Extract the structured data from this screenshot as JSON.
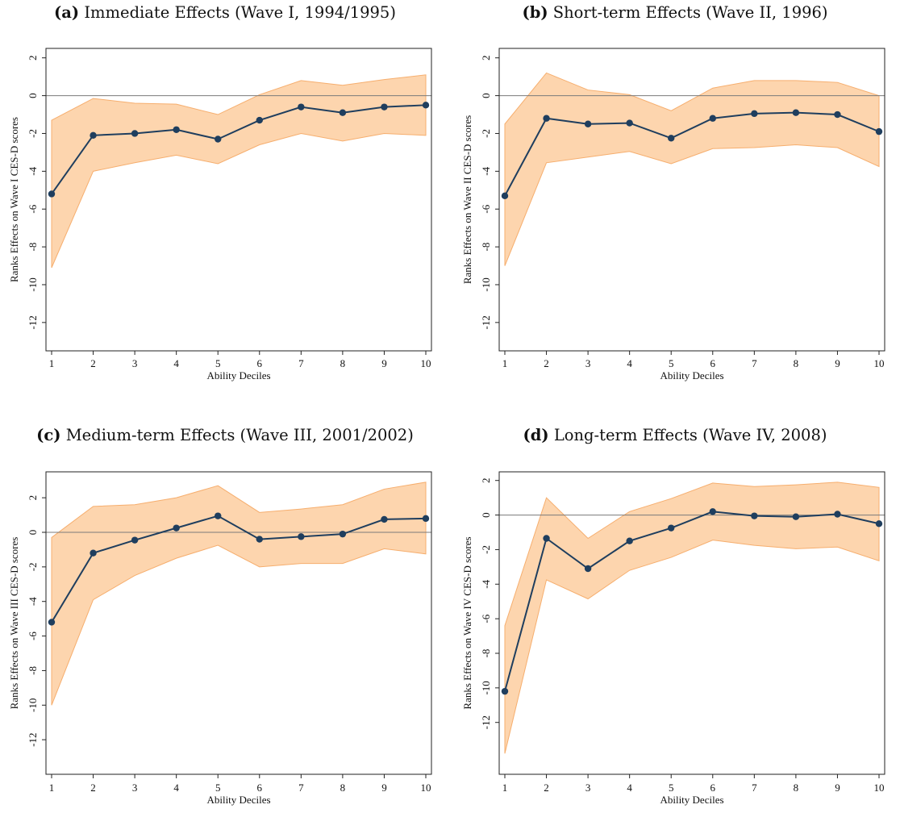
{
  "colors": {
    "band_fill": "#fdd5ae",
    "band_stroke": "#f6ae6e",
    "line": "#1f3e5e",
    "zero_line": "#7a7a7a",
    "axis": "#222222"
  },
  "chart_data": [
    {
      "type": "line",
      "letter": "(a)",
      "title": "Immediate Effects (Wave I, 1994/1995)",
      "xlabel": "Ability Deciles",
      "ylabel": "Ranks Effects on Wave I CES-D scores",
      "x": [
        1,
        2,
        3,
        4,
        5,
        6,
        7,
        8,
        9,
        10
      ],
      "ylim": [
        -13.5,
        2.5
      ],
      "yticks": [
        2,
        0,
        -2,
        -4,
        -6,
        -8,
        -10,
        -12
      ],
      "ytick_labels": [
        "2",
        "0",
        "-2",
        "-4",
        "-6",
        "-8",
        "-10",
        "-12"
      ],
      "series": [
        {
          "estimate": [
            -5.2,
            -2.1,
            -2.0,
            -1.8,
            -2.3,
            -1.3,
            -0.6,
            -0.9,
            -0.6,
            -0.5
          ],
          "ci_upper": [
            -1.3,
            -0.15,
            -0.4,
            -0.45,
            -1.0,
            0.05,
            0.8,
            0.55,
            0.85,
            1.1
          ],
          "ci_lower": [
            -9.1,
            -4.0,
            -3.55,
            -3.15,
            -3.6,
            -2.6,
            -2.0,
            -2.4,
            -2.0,
            -2.1
          ]
        }
      ]
    },
    {
      "type": "line",
      "letter": "(b)",
      "title": "Short-term Effects (Wave II, 1996)",
      "xlabel": "Ability Deciles",
      "ylabel": "Ranks Effects on Wave II CES-D scores",
      "x": [
        1,
        2,
        3,
        4,
        5,
        6,
        7,
        8,
        9,
        10
      ],
      "ylim": [
        -13.5,
        2.5
      ],
      "yticks": [
        2,
        0,
        -2,
        -4,
        -6,
        -8,
        -10,
        -12
      ],
      "ytick_labels": [
        "2",
        "0",
        "-2",
        "-4",
        "-6",
        "-8",
        "-10",
        "-12"
      ],
      "series": [
        {
          "estimate": [
            -5.3,
            -1.2,
            -1.5,
            -1.45,
            -2.25,
            -1.2,
            -0.95,
            -0.9,
            -1.0,
            -1.9
          ],
          "ci_upper": [
            -1.5,
            1.2,
            0.3,
            0.05,
            -0.8,
            0.4,
            0.8,
            0.8,
            0.7,
            0.0
          ],
          "ci_lower": [
            -9.0,
            -3.55,
            -3.25,
            -2.95,
            -3.6,
            -2.8,
            -2.75,
            -2.6,
            -2.75,
            -3.75
          ]
        }
      ]
    },
    {
      "type": "line",
      "letter": "(c)",
      "title": "Medium-term Effects (Wave III, 2001/2002)",
      "xlabel": "Ability Deciles",
      "ylabel": "Ranks Effects on Wave III CES-D scores",
      "x": [
        1,
        2,
        3,
        4,
        5,
        6,
        7,
        8,
        9,
        10
      ],
      "ylim": [
        -14,
        3.5
      ],
      "yticks": [
        2,
        0,
        -2,
        -4,
        -6,
        -8,
        -10,
        -12
      ],
      "ytick_labels": [
        "2",
        "0",
        "-2",
        "-4",
        "-6",
        "-8",
        "-10",
        "-12"
      ],
      "series": [
        {
          "estimate": [
            -5.2,
            -1.2,
            -0.45,
            0.25,
            0.95,
            -0.4,
            -0.25,
            -0.1,
            0.75,
            0.8
          ],
          "ci_upper": [
            -0.3,
            1.5,
            1.6,
            2.0,
            2.7,
            1.15,
            1.35,
            1.6,
            2.5,
            2.9
          ],
          "ci_lower": [
            -10.0,
            -3.9,
            -2.5,
            -1.5,
            -0.75,
            -2.0,
            -1.8,
            -1.8,
            -0.95,
            -1.25
          ]
        }
      ]
    },
    {
      "type": "line",
      "letter": "(d)",
      "title": "Long-term Effects (Wave IV, 2008)",
      "xlabel": "Ability Deciles",
      "ylabel": "Ranks Effects on Wave IV CES-D scores",
      "x": [
        1,
        2,
        3,
        4,
        5,
        6,
        7,
        8,
        9,
        10
      ],
      "ylim": [
        -15,
        2.5
      ],
      "yticks": [
        2,
        0,
        -2,
        -4,
        -6,
        -8,
        -10,
        -12
      ],
      "ytick_labels": [
        "2",
        "0",
        "-2",
        "-4",
        "-6",
        "-8",
        "-10",
        "-12"
      ],
      "series": [
        {
          "estimate": [
            -10.2,
            -1.35,
            -3.1,
            -1.5,
            -0.75,
            0.2,
            -0.05,
            -0.1,
            0.05,
            -0.5
          ],
          "ci_upper": [
            -6.4,
            1.0,
            -1.35,
            0.2,
            0.95,
            1.85,
            1.65,
            1.75,
            1.9,
            1.6
          ],
          "ci_lower": [
            -13.8,
            -3.75,
            -4.85,
            -3.2,
            -2.45,
            -1.45,
            -1.75,
            -1.95,
            -1.85,
            -2.65
          ]
        }
      ]
    }
  ]
}
